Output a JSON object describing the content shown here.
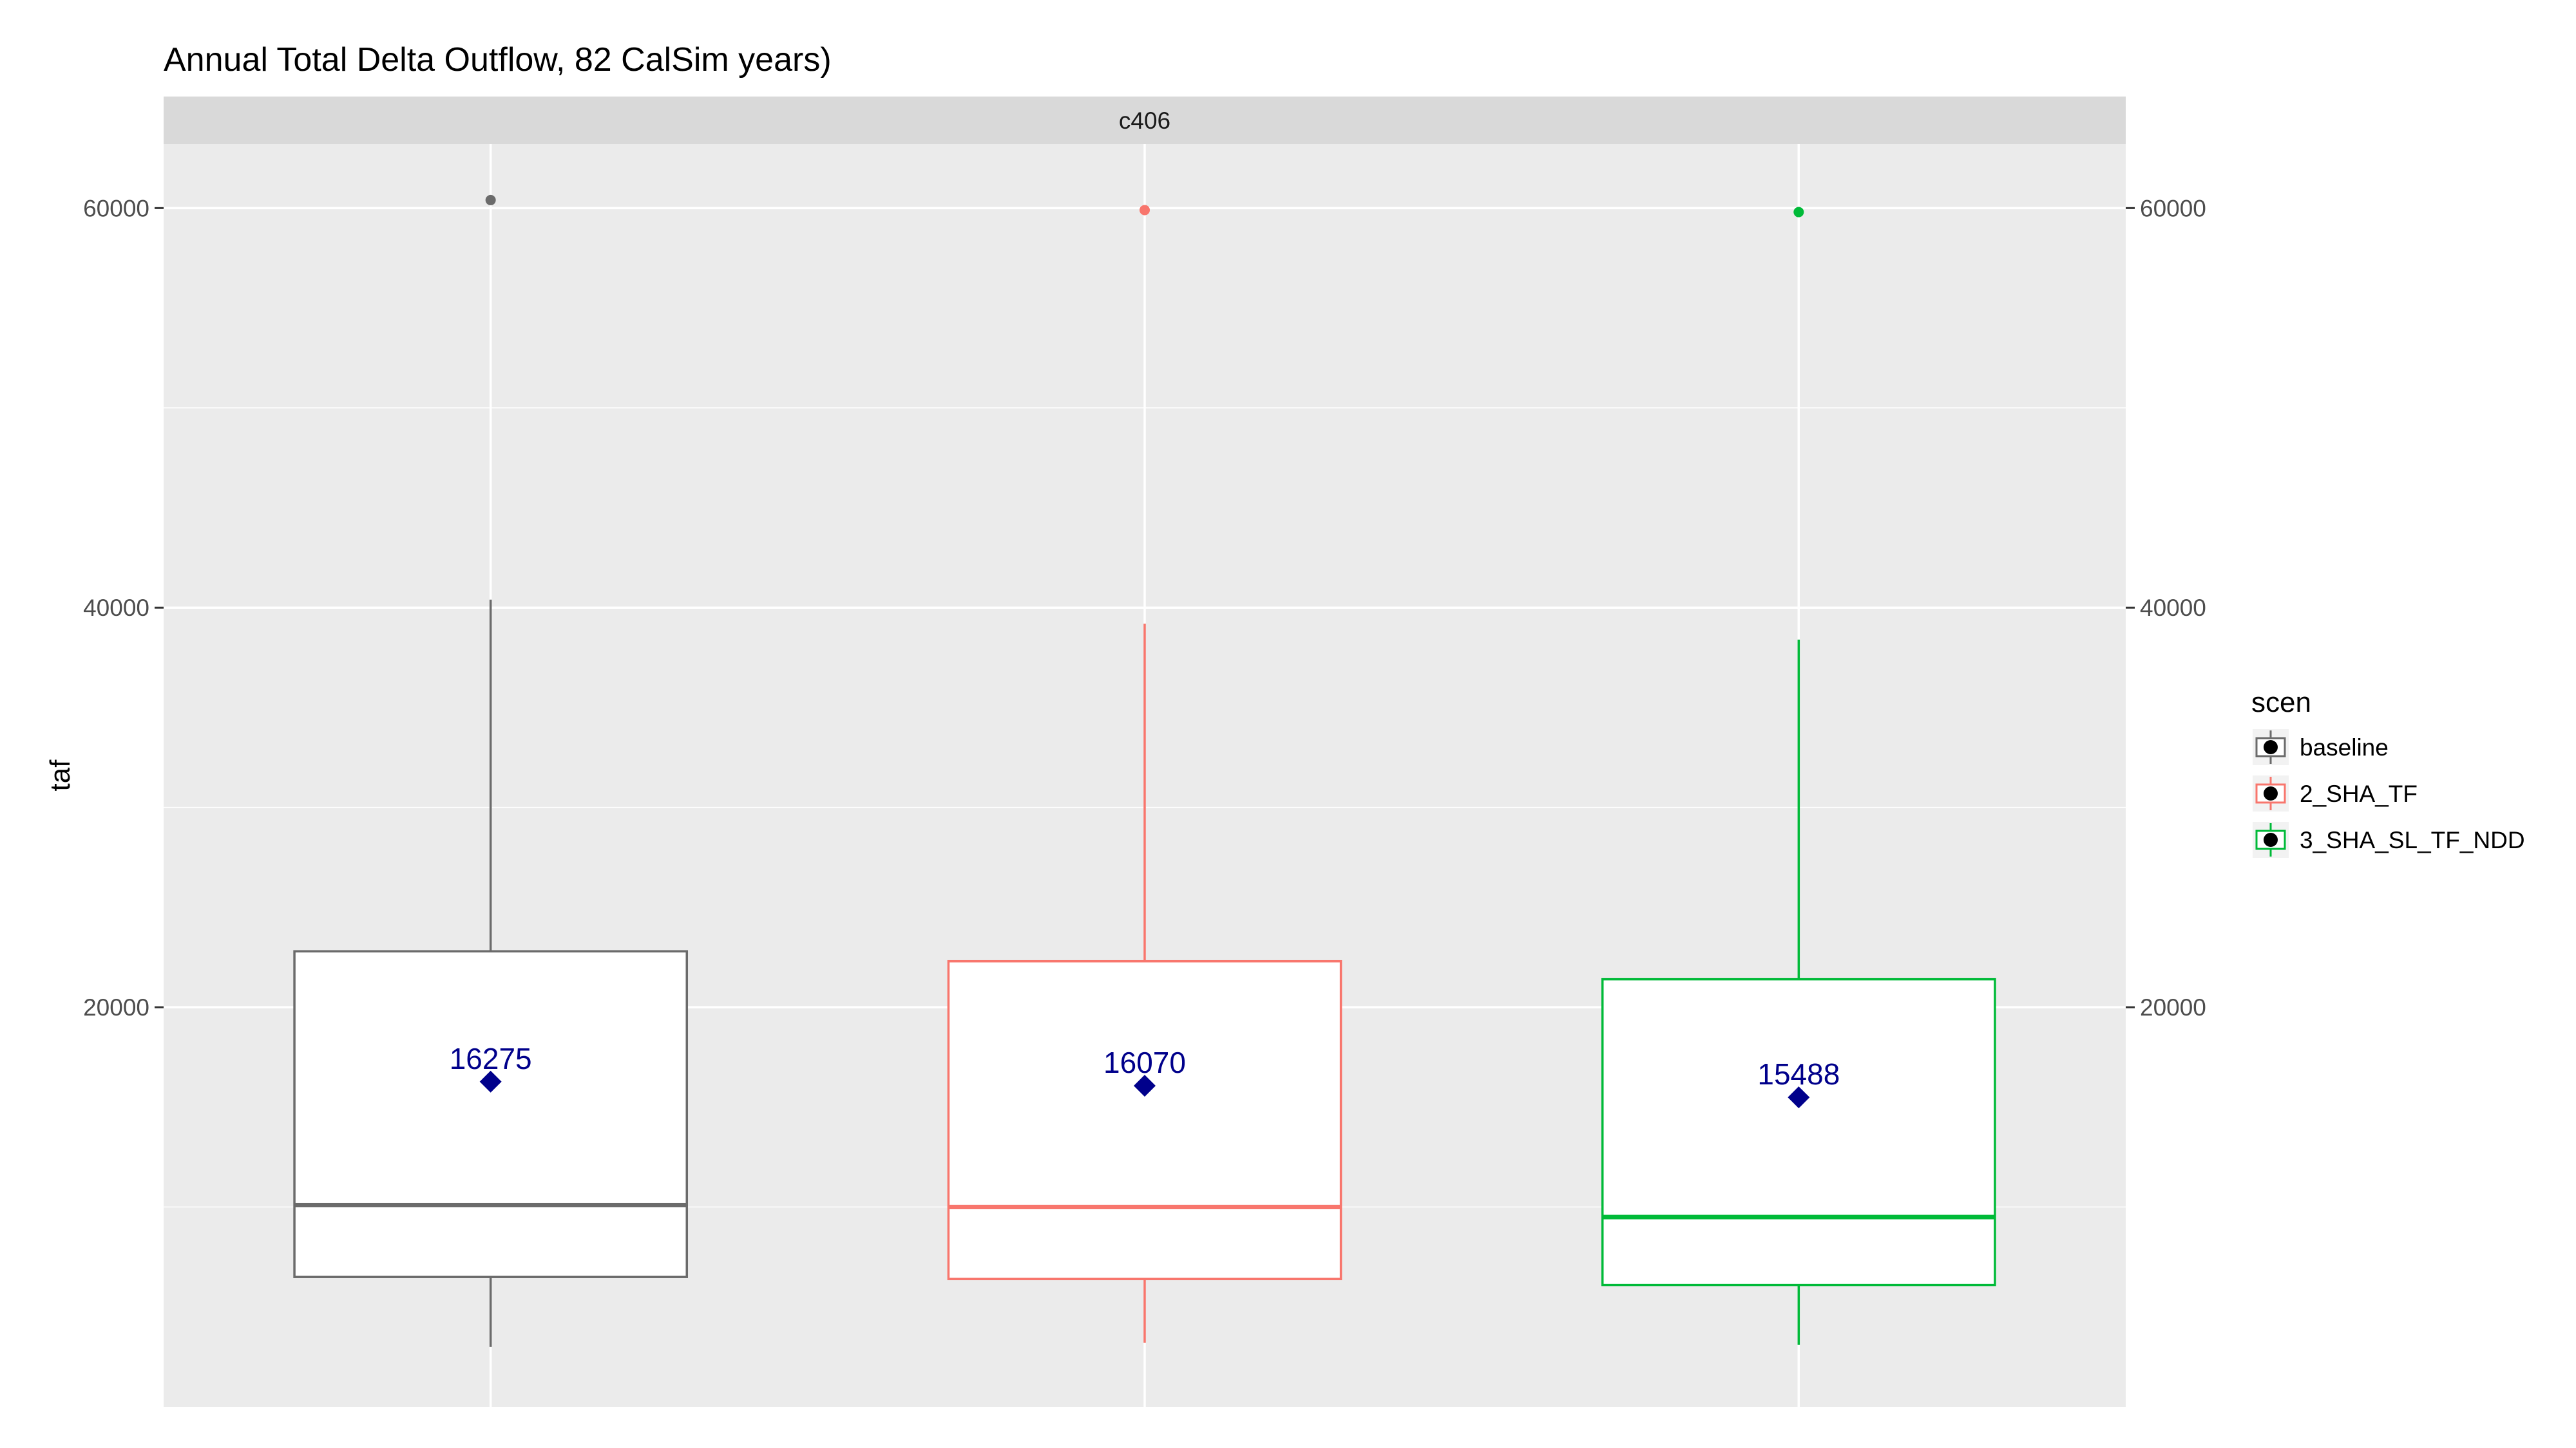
{
  "chart_data": {
    "type": "boxplot",
    "title": "Annual Total Delta Outflow, 82 CalSim years)",
    "facet_label": "c406",
    "ylabel": "taf",
    "xlabel": "",
    "ylim": [
      0,
      63200
    ],
    "y_ticks": [
      20000,
      40000,
      60000
    ],
    "y_tick_labels": [
      "20000",
      "40000",
      "60000"
    ],
    "grid": true,
    "legend": {
      "title": "scen",
      "placement": "right"
    },
    "series": [
      {
        "name": "baseline",
        "color": "#6b6b6b",
        "min": 3000,
        "q1": 6500,
        "median": 10100,
        "q3": 22800,
        "max": 40400,
        "mean": 16275,
        "mean_label": "16275",
        "outliers": [
          60400
        ]
      },
      {
        "name": "2_SHA_TF",
        "color": "#f8766d",
        "min": 3200,
        "q1": 6400,
        "median": 10000,
        "q3": 22300,
        "max": 39200,
        "mean": 16070,
        "mean_label": "16070",
        "outliers": [
          59900
        ]
      },
      {
        "name": "3_SHA_SL_TF_NDD",
        "color": "#00ba38",
        "min": 3100,
        "q1": 6100,
        "median": 9500,
        "q3": 21400,
        "max": 38400,
        "mean": 15488,
        "mean_label": "15488",
        "outliers": [
          59800
        ]
      }
    ]
  }
}
